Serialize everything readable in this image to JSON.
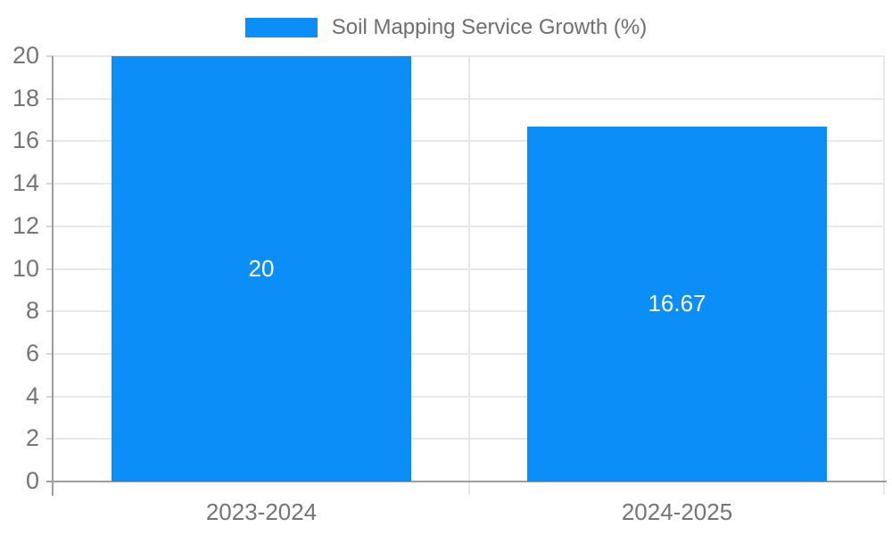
{
  "chart_data": {
    "type": "bar",
    "title": "Soil Mapping Service Growth (%)",
    "legend": {
      "label": "Soil Mapping Service Growth (%)",
      "position": "top"
    },
    "categories": [
      "2023-2024",
      "2024-2025"
    ],
    "values": [
      20,
      16.67
    ],
    "value_labels": [
      "20",
      "16.67"
    ],
    "ylim": [
      0,
      20
    ],
    "ytick_step": 2,
    "yticks": [
      0,
      2,
      4,
      6,
      8,
      10,
      12,
      14,
      16,
      18,
      20
    ],
    "grid": true,
    "bar_width_fraction": 0.72,
    "colors": {
      "bar": "#0b8ef8",
      "bar_label": "#ffffff",
      "gridline": "#e8e8e8",
      "side_tick": "#d6d6d6",
      "axis_line": "#9e9e9e",
      "tick_label": "#757575",
      "legend_text": "#6f6f6f",
      "background": "#ffffff"
    }
  }
}
